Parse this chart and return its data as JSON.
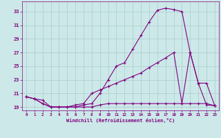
{
  "xlabel": "Windchill (Refroidissement éolien,°C)",
  "bg_color": "#cce8e8",
  "line_color": "#800080",
  "grid_color": "#aacccc",
  "line1_x": [
    0,
    1,
    2,
    3,
    4,
    5,
    6,
    7,
    8,
    9,
    10,
    11,
    12,
    13,
    14,
    15,
    16,
    17,
    18,
    19,
    20,
    21,
    22,
    23
  ],
  "line1_y": [
    20.5,
    20.2,
    20.0,
    19.0,
    19.0,
    19.0,
    19.0,
    19.3,
    19.5,
    21.0,
    23.0,
    25.0,
    25.5,
    27.5,
    29.5,
    31.5,
    33.2,
    33.5,
    33.3,
    33.0,
    27.0,
    22.5,
    19.3,
    19.2
  ],
  "line2_x": [
    0,
    1,
    2,
    3,
    4,
    5,
    6,
    7,
    8,
    9,
    10,
    11,
    12,
    13,
    14,
    15,
    16,
    17,
    18,
    19,
    20,
    21,
    22,
    23
  ],
  "line2_y": [
    20.5,
    20.2,
    19.5,
    19.0,
    19.0,
    19.0,
    19.0,
    19.0,
    19.0,
    19.3,
    19.5,
    19.5,
    19.5,
    19.5,
    19.5,
    19.5,
    19.5,
    19.5,
    19.5,
    19.5,
    19.5,
    19.5,
    19.5,
    19.2
  ],
  "line3_x": [
    0,
    1,
    2,
    3,
    4,
    5,
    6,
    7,
    8,
    9,
    10,
    11,
    12,
    13,
    14,
    15,
    16,
    17,
    18,
    19,
    20,
    21,
    22,
    23
  ],
  "line3_y": [
    20.5,
    20.2,
    19.5,
    19.0,
    19.0,
    19.0,
    19.3,
    19.5,
    21.0,
    21.5,
    22.0,
    22.5,
    23.0,
    23.5,
    24.0,
    24.8,
    25.5,
    26.2,
    27.0,
    19.5,
    27.0,
    22.5,
    22.5,
    19.2
  ],
  "xlim": [
    -0.5,
    23.5
  ],
  "ylim": [
    18.5,
    34.5
  ],
  "yticks": [
    19,
    21,
    23,
    25,
    27,
    29,
    31,
    33
  ],
  "xticks": [
    0,
    1,
    2,
    3,
    4,
    5,
    6,
    7,
    8,
    9,
    10,
    11,
    12,
    13,
    14,
    15,
    16,
    17,
    18,
    19,
    20,
    21,
    22,
    23
  ]
}
